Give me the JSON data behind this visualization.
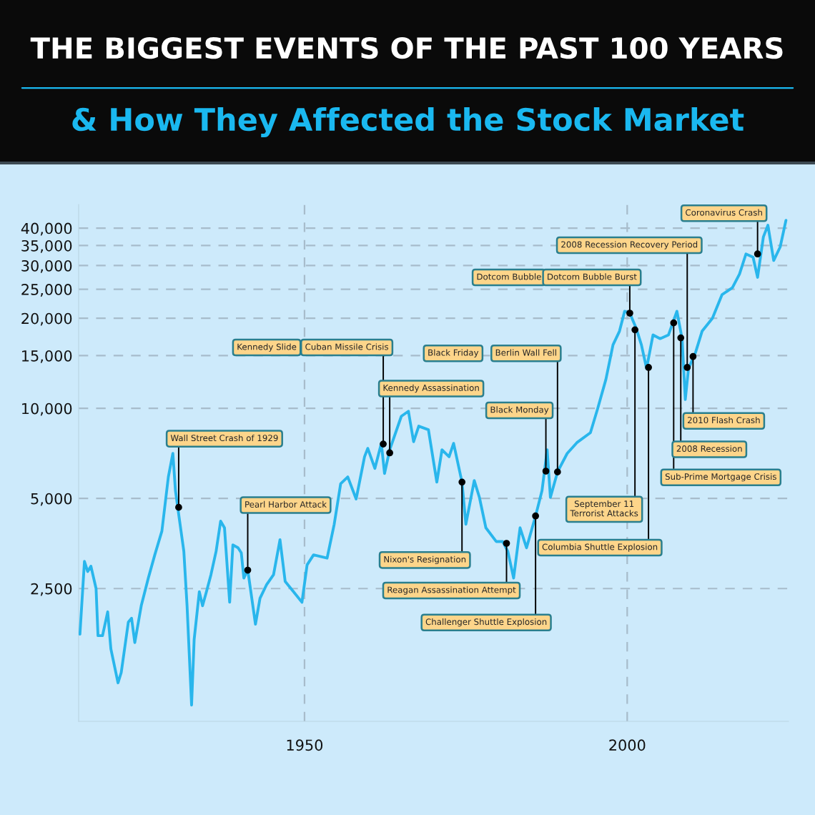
{
  "chart_data": {
    "type": "line",
    "title": "THE BIGGEST EVENTS OF THE PAST 100 YEARS",
    "subtitle": "& How They Affected the Stock Market",
    "x": [
      1915.2,
      1915.9,
      1916.4,
      1916.9,
      1917.7,
      1918.0,
      1918.7,
      1919.5,
      1920.0,
      1921.1,
      1921.6,
      1922.7,
      1923.2,
      1923.7,
      1924.7,
      1925.8,
      1926.8,
      1927.9,
      1928.9,
      1929.6,
      1930.0,
      1930.5,
      1931.3,
      1931.8,
      1932.5,
      1932.9,
      1933.7,
      1934.2,
      1934.8,
      1935.5,
      1936.3,
      1937.0,
      1937.6,
      1938.4,
      1938.9,
      1939.7,
      1940.2,
      1940.6,
      1941.2,
      1942.4,
      1943.1,
      1944.1,
      1945.2,
      1946.2,
      1947.0,
      1948.3,
      1949.6,
      1950.4,
      1951.4,
      1953.5,
      1954.6,
      1955.6,
      1956.7,
      1958.0,
      1959.3,
      1959.8,
      1960.9,
      1961.9,
      1962.4,
      1963.2,
      1965.0,
      1966.1,
      1966.9,
      1967.7,
      1969.2,
      1970.5,
      1971.3,
      1972.4,
      1973.1,
      1974.4,
      1975.0,
      1976.3,
      1977.1,
      1978.1,
      1979.7,
      1980.7,
      1981.5,
      1982.4,
      1983.4,
      1984.4,
      1985.8,
      1986.8,
      1987.6,
      1988.1,
      1989.2,
      1990.7,
      1992.2,
      1994.3,
      1995.4,
      1996.7,
      1997.8,
      1998.8,
      1999.6,
      2000.4,
      2001.4,
      2002.2,
      2003.0,
      2004.0,
      2005.1,
      2006.4,
      2007.7,
      2008.5,
      2009.0,
      2009.5,
      2010.6,
      2011.6,
      2013.2,
      2014.7,
      2016.3,
      2017.4,
      2018.4,
      2019.5,
      2020.2,
      2021.1,
      2021.8,
      2022.7,
      2023.7,
      2024.6
    ],
    "series": [
      {
        "color": "#29b6ec",
        "values": [
          1760,
          3080,
          2850,
          2970,
          2500,
          1740,
          1740,
          2090,
          1570,
          1210,
          1310,
          1930,
          1990,
          1650,
          2190,
          2710,
          3240,
          3890,
          5900,
          7070,
          5310,
          4430,
          3330,
          2190,
          1020,
          1690,
          2440,
          2190,
          2440,
          2780,
          3330,
          4200,
          3990,
          2250,
          3500,
          3420,
          3290,
          2710,
          2890,
          1900,
          2320,
          2570,
          2780,
          3640,
          2640,
          2440,
          2250,
          3000,
          3240,
          3160,
          4100,
          5600,
          5900,
          4980,
          6890,
          7350,
          6300,
          7640,
          6060,
          7270,
          9410,
          9780,
          7740,
          8720,
          8480,
          5670,
          7270,
          6890,
          7640,
          5670,
          4100,
          5740,
          5040,
          3990,
          3590,
          3590,
          3330,
          2710,
          3990,
          3420,
          4370,
          5310,
          7270,
          5040,
          6130,
          7070,
          7680,
          8290,
          9940,
          12500,
          16300,
          18100,
          21100,
          20800,
          18500,
          16300,
          13600,
          17600,
          17100,
          17600,
          21100,
          17100,
          10700,
          13600,
          15400,
          18100,
          20000,
          24000,
          25300,
          28100,
          32800,
          32000,
          27400,
          37400,
          40900,
          31200,
          34600,
          42500
        ]
      }
    ],
    "log": "y",
    "xlim": [
      1915,
      2025
    ],
    "ylim": [
      900,
      48000
    ],
    "xticks": [
      1950,
      2000
    ],
    "yticks": [
      {
        "value": 2500,
        "label": "2,500"
      },
      {
        "value": 5000,
        "label": "5,000"
      },
      {
        "value": 10000,
        "label": "10,000"
      },
      {
        "value": 15000,
        "label": "15,000"
      },
      {
        "value": 20000,
        "label": "20,000"
      },
      {
        "value": 25000,
        "label": "25,000"
      },
      {
        "value": 30000,
        "label": "30,000"
      },
      {
        "value": 35000,
        "label": "35,000"
      },
      {
        "value": 40000,
        "label": "40,000"
      }
    ],
    "grid": true,
    "marker": "none",
    "line_style": "solid",
    "annotations": [
      {
        "text": "Wall Street Crash of 1929",
        "x": 1930.5,
        "y": 4670
      },
      {
        "text": "Pearl Harbor Attack",
        "x": 1941.2,
        "y": 2880
      },
      "Kennedy Slide",
      {
        "text": "Cuban Missile Crisis",
        "x": 1962.2,
        "y": 7600
      },
      {
        "text": "Kennedy Assassination",
        "x": 1963.2,
        "y": 7100
      },
      {
        "text": "Nixon's Resignation",
        "x": 1974.4,
        "y": 5670
      },
      {
        "text": "Reagan Assassination Attempt",
        "x": 1981.3,
        "y": 3540
      },
      {
        "text": "Challenger Shuttle Explosion",
        "x": 1985.8,
        "y": 4370
      },
      {
        "text": "Black Monday",
        "x": 1987.4,
        "y": 6170
      },
      "Black Friday",
      {
        "text": "Berlin Wall Fell",
        "x": 1989.2,
        "y": 6130
      },
      "Dotcom Bubble",
      {
        "text": "Dotcom Bubble Burst",
        "x": 2000.4,
        "y": 20800
      },
      {
        "text": "September 11\nTerrorist Attacks",
        "x": 2001.2,
        "y": 18300
      },
      {
        "text": "Columbia Shuttle Explosion",
        "x": 2003.3,
        "y": 13700
      },
      {
        "text": "Sub-Prime Mortgage Crisis",
        "x": 2007.2,
        "y": 19300
      },
      {
        "text": "2008 Recession",
        "x": 2008.3,
        "y": 17200
      },
      {
        "text": "2008 Recession Recovery Period",
        "x": 2009.3,
        "y": 13700
      },
      {
        "text": "2010 Flash Crash",
        "x": 2010.2,
        "y": 14900
      },
      {
        "text": "Coronavirus Crash",
        "x": 2020.2,
        "y": 32800
      }
    ]
  }
}
